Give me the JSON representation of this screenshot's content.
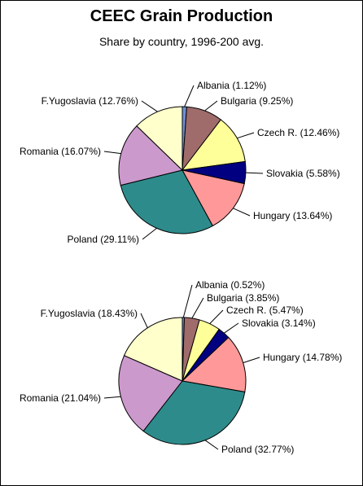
{
  "title": "CEEC Grain Production",
  "subtitle": "Share by country, 1996-200 avg.",
  "colors": {
    "Albania": "#6f8fd6",
    "Bulgaria": "#a06b6b",
    "Czech R.": "#ffff99",
    "Slovakia": "#000080",
    "Hungary": "#ff9999",
    "Poland": "#2e8b8b",
    "Romania": "#cc99cc",
    "F.Yugoslavia": "#ffffcc"
  },
  "chart_data": [
    {
      "type": "pie",
      "slices": [
        {
          "name": "Albania",
          "value": 1.12,
          "label": "Albania (1.12%)"
        },
        {
          "name": "Bulgaria",
          "value": 9.25,
          "label": "Bulgaria (9.25%)"
        },
        {
          "name": "Czech R.",
          "value": 12.46,
          "label": "Czech R. (12.46%)"
        },
        {
          "name": "Slovakia",
          "value": 5.58,
          "label": "Slovakia (5.58%)"
        },
        {
          "name": "Hungary",
          "value": 13.64,
          "label": "Hungary (13.64%)"
        },
        {
          "name": "Poland",
          "value": 29.11,
          "label": "Poland (29.11%)"
        },
        {
          "name": "Romania",
          "value": 16.07,
          "label": "Romania (16.07%)"
        },
        {
          "name": "F.Yugoslavia",
          "value": 12.76,
          "label": "F.Yugoslavia (12.76%)"
        }
      ]
    },
    {
      "type": "pie",
      "slices": [
        {
          "name": "Albania",
          "value": 0.52,
          "label": "Albania (0.52%)"
        },
        {
          "name": "Bulgaria",
          "value": 3.85,
          "label": "Bulgaria (3.85%)"
        },
        {
          "name": "Czech R.",
          "value": 5.47,
          "label": "Czech R. (5.47%)"
        },
        {
          "name": "Slovakia",
          "value": 3.14,
          "label": "Slovakia (3.14%)"
        },
        {
          "name": "Hungary",
          "value": 14.78,
          "label": "Hungary (14.78%)"
        },
        {
          "name": "Poland",
          "value": 32.77,
          "label": "Poland (32.77%)"
        },
        {
          "name": "Romania",
          "value": 21.04,
          "label": "Romania (21.04%)"
        },
        {
          "name": "F.Yugoslavia",
          "value": 18.43,
          "label": "F.Yugoslavia (18.43%)"
        }
      ]
    }
  ]
}
